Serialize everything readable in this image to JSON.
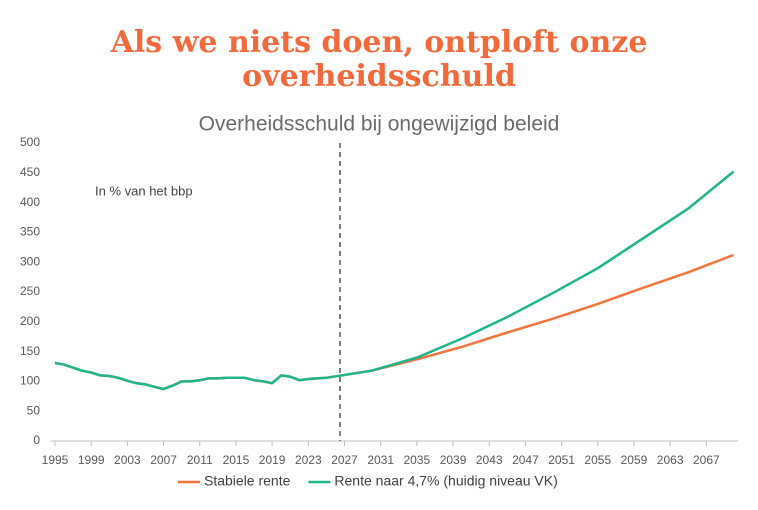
{
  "chart_data": {
    "type": "line",
    "title": "Als we niets doen, ontploft onze overheidsschuld",
    "subtitle": "Overheidsschuld bij ongewijzigd beleid",
    "annotation": "In % van het bbp",
    "x": [
      1995,
      1996,
      1997,
      1998,
      1999,
      2000,
      2001,
      2002,
      2003,
      2004,
      2005,
      2006,
      2007,
      2008,
      2009,
      2010,
      2011,
      2012,
      2013,
      2014,
      2015,
      2016,
      2017,
      2018,
      2019,
      2020,
      2021,
      2022,
      2023,
      2024,
      2025,
      2030,
      2035,
      2040,
      2045,
      2050,
      2055,
      2060,
      2065,
      2070
    ],
    "series": [
      {
        "name": "Stabiele rente",
        "color": "#f4743b",
        "values": [
          131,
          128,
          123,
          118,
          115,
          110,
          109,
          106,
          101,
          97,
          95,
          91,
          87,
          93,
          100,
          100,
          102,
          105,
          105,
          106,
          106,
          106,
          102,
          100,
          97,
          110,
          108,
          102,
          104,
          105,
          106,
          118,
          137,
          158,
          182,
          205,
          230,
          257,
          283,
          312
        ]
      },
      {
        "name": "Rente naar 4,7% (huidig niveau VK)",
        "color": "#1db58a",
        "values": [
          131,
          128,
          123,
          118,
          115,
          110,
          109,
          106,
          101,
          97,
          95,
          91,
          87,
          93,
          100,
          100,
          102,
          105,
          105,
          106,
          106,
          106,
          102,
          100,
          97,
          110,
          108,
          102,
          104,
          105,
          106,
          118,
          140,
          172,
          208,
          248,
          290,
          340,
          390,
          452
        ]
      }
    ],
    "vline_x": 2026.5,
    "xlim": [
      1994.5,
      2070.5
    ],
    "xticks": [
      1995,
      1999,
      2003,
      2007,
      2011,
      2015,
      2019,
      2023,
      2027,
      2031,
      2035,
      2039,
      2043,
      2047,
      2051,
      2055,
      2059,
      2063,
      2067
    ],
    "ylim": [
      0,
      500
    ],
    "yticks": [
      0,
      50,
      100,
      150,
      200,
      250,
      300,
      350,
      400,
      450,
      500
    ]
  }
}
